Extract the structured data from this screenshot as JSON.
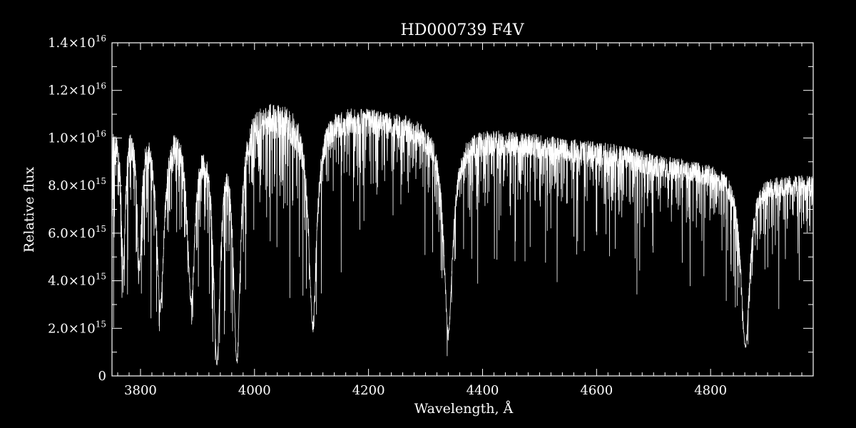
{
  "chart_data": {
    "type": "line",
    "title": "HD000739   F4V",
    "xlabel": "Wavelength, Å",
    "ylabel": "Relative flux",
    "xlim": [
      3750,
      4980
    ],
    "ylim": [
      0,
      1.4e+16
    ],
    "grid": false,
    "colors": {
      "background": "#000000",
      "foreground": "#ffffff"
    },
    "x_ticks": [
      {
        "value": 3800,
        "label": "3800"
      },
      {
        "value": 4000,
        "label": "4000"
      },
      {
        "value": 4200,
        "label": "4200"
      },
      {
        "value": 4400,
        "label": "4400"
      },
      {
        "value": 4600,
        "label": "4600"
      },
      {
        "value": 4800,
        "label": "4800"
      }
    ],
    "y_ticks": [
      {
        "value": 0,
        "mantissa": "0",
        "exponent": ""
      },
      {
        "value": 2000000000000000.0,
        "mantissa": "2.0×10",
        "exponent": "15"
      },
      {
        "value": 4000000000000000.0,
        "mantissa": "4.0×10",
        "exponent": "15"
      },
      {
        "value": 6000000000000000.0,
        "mantissa": "6.0×10",
        "exponent": "15"
      },
      {
        "value": 8000000000000000.0,
        "mantissa": "8.0×10",
        "exponent": "15"
      },
      {
        "value": 1e+16,
        "mantissa": "1.0×10",
        "exponent": "16"
      },
      {
        "value": 1.2e+16,
        "mantissa": "1.2×10",
        "exponent": "16"
      },
      {
        "value": 1.4e+16,
        "mantissa": "1.4×10",
        "exponent": "16"
      }
    ],
    "continuum": {
      "x": [
        3750,
        3780,
        3810,
        3840,
        3870,
        3900,
        3930,
        3960,
        3990,
        4020,
        4050,
        4080,
        4110,
        4140,
        4170,
        4200,
        4230,
        4260,
        4290,
        4320,
        4350,
        4380,
        4410,
        4440,
        4470,
        4500,
        4530,
        4560,
        4590,
        4620,
        4650,
        4680,
        4710,
        4740,
        4770,
        4800,
        4830,
        4860,
        4890,
        4920,
        4950,
        4980
      ],
      "y": [
        1.1e+16,
        1.2e+16,
        1.22e+16,
        1.22e+16,
        1.21e+16,
        1.2e+16,
        1.18e+16,
        1.2e+16,
        1.22e+16,
        1.23e+16,
        1.22e+16,
        1.2e+16,
        1.17e+16,
        1.18e+16,
        1.18e+16,
        1.17e+16,
        1.16e+16,
        1.15e+16,
        1.13e+16,
        1.11e+16,
        1.08e+16,
        1.08e+16,
        1.08e+16,
        1.07e+16,
        1.06e+16,
        1.05e+16,
        1.04e+16,
        1.03e+16,
        1.02e+16,
        1.01e+16,
        1e+16,
        9800000000000000.0,
        9600000000000000.0,
        9500000000000000.0,
        9400000000000000.0,
        9300000000000000.0,
        9200000000000000.0,
        9000000000000000.0,
        8900000000000000.0,
        8800000000000000.0,
        8800000000000000.0,
        8700000000000000.0
      ]
    },
    "absorption_features": [
      {
        "center": 3770,
        "depth": 0.55,
        "width": 4
      },
      {
        "center": 3798,
        "depth": 0.55,
        "width": 5
      },
      {
        "center": 3835,
        "depth": 0.72,
        "width": 8
      },
      {
        "center": 3889,
        "depth": 0.7,
        "width": 8
      },
      {
        "center": 3934,
        "depth": 0.95,
        "width": 7
      },
      {
        "center": 3969,
        "depth": 0.94,
        "width": 7
      },
      {
        "center": 4102,
        "depth": 0.8,
        "width": 8
      },
      {
        "center": 4340,
        "depth": 0.82,
        "width": 9
      },
      {
        "center": 4861,
        "depth": 0.85,
        "width": 9
      }
    ]
  }
}
